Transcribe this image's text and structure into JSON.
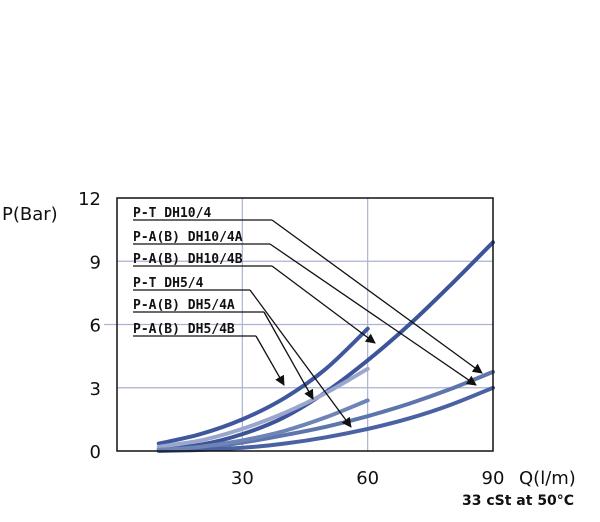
{
  "chart_data": {
    "type": "line",
    "ylabel": "P(Bar)",
    "xlabel": "Q(l/m)",
    "note": "33 cSt at 50°C",
    "xlim": [
      0,
      90
    ],
    "ylim": [
      0,
      12
    ],
    "xticks": [
      30,
      60,
      90
    ],
    "yticks": [
      0,
      3,
      6,
      9,
      12
    ],
    "grid": true,
    "legend_position": "top-left",
    "series": [
      {
        "name": "P-T DH10/4",
        "color": "#3c5499",
        "x": [
          10,
          20,
          30,
          40,
          50,
          60,
          70,
          80,
          90
        ],
        "y": [
          0.1,
          0.3,
          0.8,
          1.6,
          2.8,
          4.3,
          6.0,
          7.9,
          9.9
        ]
      },
      {
        "name": "P-A(B) DH10/4A",
        "color": "#5e74ac",
        "x": [
          10,
          20,
          30,
          40,
          50,
          60,
          70,
          80,
          90
        ],
        "y": [
          0.05,
          0.15,
          0.4,
          0.75,
          1.15,
          1.65,
          2.25,
          2.95,
          3.75
        ]
      },
      {
        "name": "P-A(B) DH10/4B",
        "color": "#4a62a3",
        "x": [
          10,
          20,
          30,
          40,
          50,
          60,
          70,
          80,
          90
        ],
        "y": [
          0,
          0.05,
          0.15,
          0.35,
          0.65,
          1.05,
          1.55,
          2.2,
          3.0
        ]
      },
      {
        "name": "P-T DH5/4",
        "color": "#3e579d",
        "x": [
          10,
          20,
          30,
          40,
          50,
          60
        ],
        "y": [
          0.35,
          0.8,
          1.5,
          2.5,
          3.9,
          5.8
        ]
      },
      {
        "name": "P-A(B) DH5/4A",
        "color": "#9aa6cc",
        "x": [
          10,
          20,
          30,
          40,
          50,
          60
        ],
        "y": [
          0.2,
          0.5,
          1.05,
          1.8,
          2.75,
          3.9
        ]
      },
      {
        "name": "P-A(B) DH5/4B",
        "color": "#6f84b6",
        "x": [
          10,
          20,
          30,
          40,
          50,
          60
        ],
        "y": [
          0.05,
          0.2,
          0.5,
          0.95,
          1.6,
          2.4
        ]
      }
    ]
  }
}
